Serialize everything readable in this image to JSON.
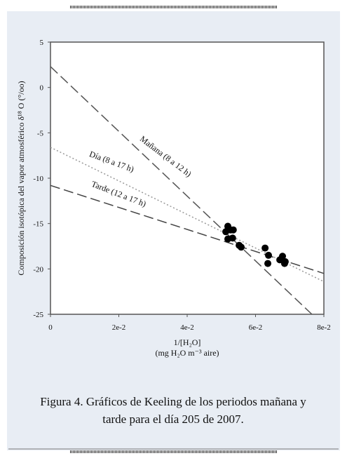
{
  "chart_data": {
    "type": "scatter",
    "points": {
      "x": [
        0.0519,
        0.0527,
        0.0513,
        0.0535,
        0.0519,
        0.0533,
        0.0552,
        0.0558,
        0.0628,
        0.0638,
        0.0636,
        0.0679,
        0.0671,
        0.0685,
        0.0687
      ],
      "values": [
        -15.3,
        -15.7,
        -15.9,
        -15.7,
        -16.7,
        -16.6,
        -17.4,
        -17.6,
        -17.7,
        -18.5,
        -19.4,
        -18.6,
        -19.0,
        -19.4,
        -19.2
      ],
      "color": "#000000"
    },
    "series": [
      {
        "name": "Mañana (8 a 12 h)",
        "color": "#555555",
        "style": "dashed",
        "x": [
          0,
          0.0765
        ],
        "values": [
          2.3,
          -25
        ]
      },
      {
        "name": "Día (8 a 17 h)",
        "color": "#999999",
        "style": "dotted",
        "x": [
          0,
          0.08
        ],
        "values": [
          -6.6,
          -21.4
        ]
      },
      {
        "name": "Tarde (12 a 17 h)",
        "color": "#444444",
        "style": "dashed",
        "x": [
          0,
          0.08
        ],
        "values": [
          -10.8,
          -20.5
        ]
      }
    ],
    "xlim": [
      0,
      0.08
    ],
    "ylim": [
      -25,
      5
    ],
    "xticks": [
      0,
      {
        "value": 0.02,
        "label": "2e-2"
      },
      {
        "value": 0.04,
        "label": "4e-2"
      },
      {
        "value": 0.06,
        "label": "6e-2"
      },
      {
        "value": 0.08,
        "label": "8e-2"
      }
    ],
    "yticks": [
      5,
      0,
      -5,
      -10,
      -15,
      -20,
      -25
    ],
    "xlabel": [
      "1/[H₂O]",
      "(mg H₂O m⁻³ aire)"
    ],
    "ylabel": "Composición isotópica del vapor atmosférico δ¹⁸ O (°/oo)",
    "caption": [
      "Figura 4. Gráficos de Keeling de los periodos mañana y",
      "tarde para el día 205 de 2007."
    ]
  }
}
